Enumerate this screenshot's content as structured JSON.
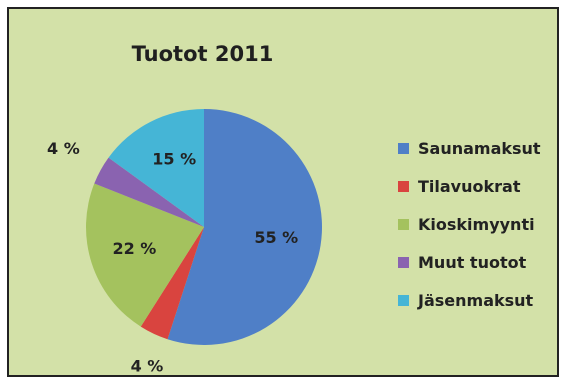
{
  "chart_data": {
    "type": "pie",
    "title": "Tuotot 2011",
    "categories": [
      "Saunamaksut",
      "Tilavuokrat",
      "Kioskimyynti",
      "Muut tuotot",
      "Jäsenmaksut"
    ],
    "values": [
      55,
      4,
      22,
      4,
      15
    ],
    "data_labels": [
      "55 %",
      "4 %",
      "22 %",
      "4 %",
      "15 %"
    ],
    "colors": [
      "#4f7fc7",
      "#d9443f",
      "#a4c25e",
      "#8a63b0",
      "#45b5d6"
    ],
    "legend_position": "right",
    "start_angle_deg": 0,
    "direction": "clockwise"
  }
}
